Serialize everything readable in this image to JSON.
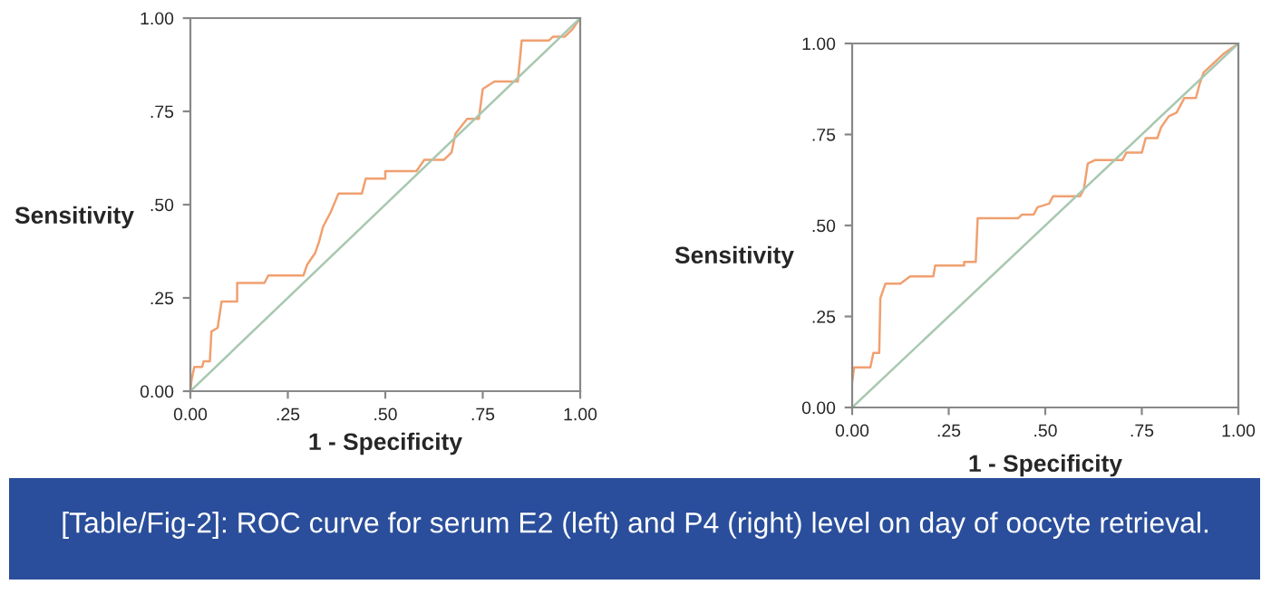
{
  "chart_data": [
    {
      "type": "line",
      "ylabel": "Sensitivity",
      "xlabel": "1 - Specificity",
      "xlim": [
        0,
        1
      ],
      "ylim": [
        0,
        1
      ],
      "xticks": [
        {
          "value": 0,
          "label": "0.00"
        },
        {
          "value": 0.25,
          "label": ".25"
        },
        {
          "value": 0.5,
          "label": ".50"
        },
        {
          "value": 0.75,
          "label": ".75"
        },
        {
          "value": 1,
          "label": "1.00"
        }
      ],
      "yticks": [
        {
          "value": 0,
          "label": "0.00"
        },
        {
          "value": 0.25,
          "label": ".25"
        },
        {
          "value": 0.5,
          "label": ".50"
        },
        {
          "value": 0.75,
          "label": ".75"
        },
        {
          "value": 1,
          "label": "1.00"
        }
      ],
      "grid": false,
      "legend": false,
      "line_style": "solid",
      "series": [
        {
          "color": "#f0a070",
          "x": [
            0,
            0.003,
            0.01,
            0.03,
            0.034,
            0.05,
            0.054,
            0.07,
            0.08,
            0.12,
            0.12,
            0.19,
            0.2,
            0.29,
            0.3,
            0.32,
            0.33,
            0.34,
            0.36,
            0.38,
            0.44,
            0.45,
            0.5,
            0.5,
            0.58,
            0.6,
            0.65,
            0.67,
            0.68,
            0.71,
            0.74,
            0.75,
            0.78,
            0.84,
            0.85,
            0.92,
            0.93,
            0.96,
            0.98,
            1
          ],
          "values": [
            0,
            0.03,
            0.065,
            0.065,
            0.08,
            0.08,
            0.16,
            0.17,
            0.24,
            0.24,
            0.29,
            0.29,
            0.31,
            0.31,
            0.34,
            0.37,
            0.4,
            0.44,
            0.48,
            0.53,
            0.53,
            0.57,
            0.57,
            0.59,
            0.59,
            0.62,
            0.62,
            0.64,
            0.69,
            0.73,
            0.73,
            0.81,
            0.83,
            0.83,
            0.94,
            0.94,
            0.95,
            0.95,
            0.97,
            1
          ]
        },
        {
          "color": "#a8c8b0",
          "x": [
            0,
            1
          ],
          "values": [
            0,
            1
          ]
        }
      ],
      "annotations": [
        "[Table/Fig-2]: ROC curve for serum E2 (left) and P4 (right) level on day of oocyte retrieval."
      ]
    },
    {
      "type": "line",
      "ylabel": "Sensitivity",
      "xlabel": "1 - Specificity",
      "xlim": [
        0,
        1
      ],
      "ylim": [
        0,
        1
      ],
      "xticks": [
        {
          "value": 0,
          "label": "0.00"
        },
        {
          "value": 0.25,
          "label": ".25"
        },
        {
          "value": 0.5,
          "label": ".50"
        },
        {
          "value": 0.75,
          "label": ".75"
        },
        {
          "value": 1,
          "label": "1.00"
        }
      ],
      "yticks": [
        {
          "value": 0,
          "label": "0.00"
        },
        {
          "value": 0.25,
          "label": ".25"
        },
        {
          "value": 0.5,
          "label": ".50"
        },
        {
          "value": 0.75,
          "label": ".75"
        },
        {
          "value": 1,
          "label": "1.00"
        }
      ],
      "grid": false,
      "legend": false,
      "line_style": "solid",
      "series": [
        {
          "color": "#f0a070",
          "x": [
            0,
            0.005,
            0.047,
            0.055,
            0.07,
            0.073,
            0.086,
            0.125,
            0.15,
            0.21,
            0.215,
            0.29,
            0.29,
            0.32,
            0.325,
            0.43,
            0.44,
            0.47,
            0.48,
            0.51,
            0.52,
            0.59,
            0.6,
            0.61,
            0.63,
            0.7,
            0.71,
            0.75,
            0.76,
            0.79,
            0.8,
            0.82,
            0.84,
            0.86,
            0.89,
            0.9,
            0.91,
            0.93,
            0.96,
            1
          ],
          "values": [
            0.07,
            0.11,
            0.11,
            0.15,
            0.15,
            0.3,
            0.34,
            0.34,
            0.36,
            0.36,
            0.39,
            0.39,
            0.4,
            0.4,
            0.52,
            0.52,
            0.53,
            0.53,
            0.55,
            0.56,
            0.58,
            0.58,
            0.6,
            0.67,
            0.68,
            0.68,
            0.7,
            0.7,
            0.74,
            0.74,
            0.77,
            0.8,
            0.81,
            0.85,
            0.85,
            0.89,
            0.92,
            0.94,
            0.97,
            1
          ]
        },
        {
          "color": "#a8c8b0",
          "x": [
            0,
            1
          ],
          "values": [
            0,
            1
          ]
        }
      ]
    }
  ]
}
